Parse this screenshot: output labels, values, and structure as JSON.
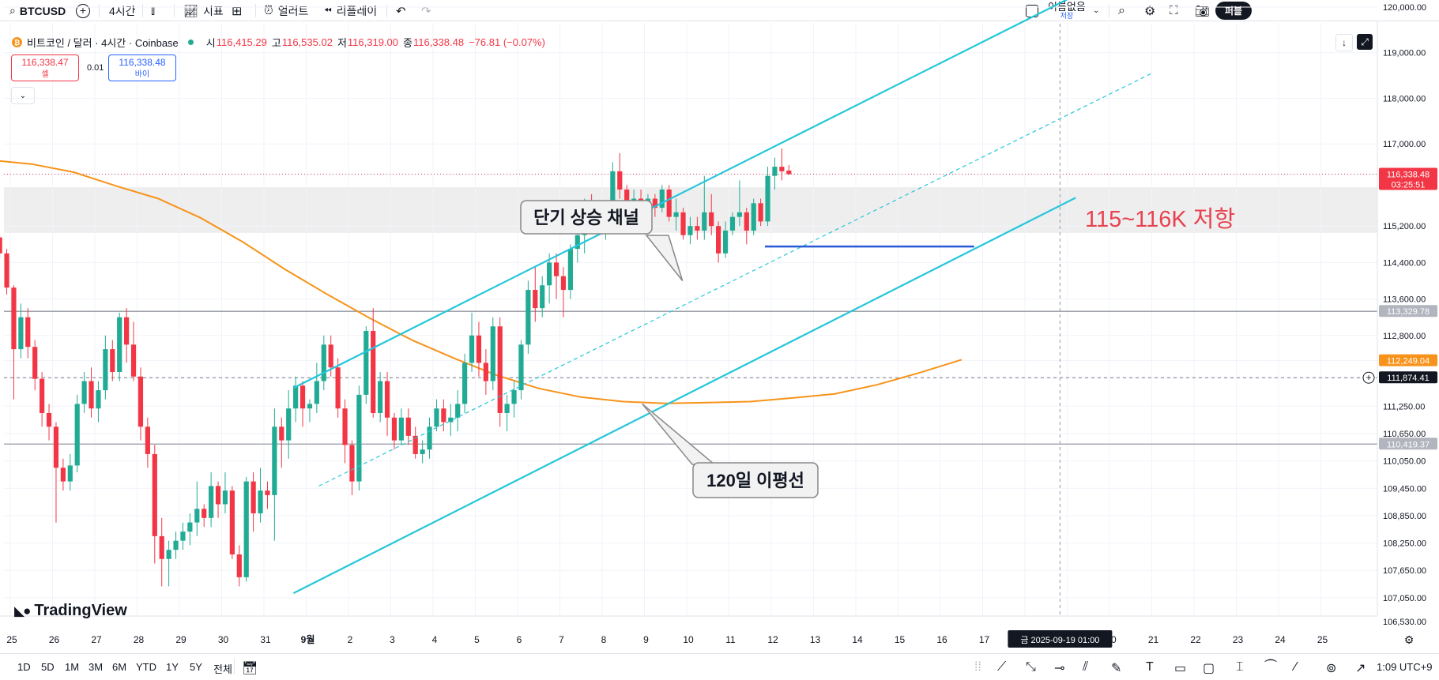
{
  "toolbar": {
    "symbol": "BTCUSD",
    "interval": "4시간",
    "indicators": "지표",
    "alert": "얼러트",
    "replay": "리플레이",
    "layout_name": "이름없음",
    "layout_status": "저장",
    "publish": "퍼블"
  },
  "legend": {
    "title": "비트코인 / 달러 · 4시간 · Coinbase",
    "o_label": "시",
    "o": "116,415.29",
    "h_label": "고",
    "h": "116,535.02",
    "l_label": "저",
    "l": "116,319.00",
    "c_label": "종",
    "c": "116,338.48",
    "change": "−76.81 (−0.07%)"
  },
  "trade": {
    "sell_price": "116,338.47",
    "sell_label": "셀",
    "spread": "0.01",
    "buy_price": "116,338.48",
    "buy_label": "바이"
  },
  "colors": {
    "up": "#22ab94",
    "down": "#f23645",
    "channel": "#26c6da",
    "ma": "#f7931a",
    "support": "#2a5bd7",
    "resistance_zone": "#eeeeee"
  },
  "chart_data": {
    "type": "candlestick",
    "timeframe": "4h",
    "ylim": [
      106300,
      120400
    ],
    "y_ticks": [
      "120,000.00",
      "119,000.00",
      "118,000.00",
      "117,000.00",
      "116,338.48",
      "115,200.00",
      "114,400.00",
      "113,600.00",
      "113,329.78",
      "112,800.00",
      "112,249.04",
      "111,874.41",
      "111,250.00",
      "110,650.00",
      "110,419.37",
      "110,050.00",
      "109,450.00",
      "108,850.00",
      "108,250.00",
      "107,650.00",
      "107,050.00",
      "106,530.00"
    ],
    "y_tick_values": [
      120000,
      119000,
      118000,
      117000,
      116338.48,
      115200,
      114400,
      113600,
      113329.78,
      112800,
      112249.04,
      111874.41,
      111250,
      110650,
      110419.37,
      110050,
      109450,
      108850,
      108250,
      107650,
      107050,
      106530
    ],
    "x_ticks": [
      "25",
      "26",
      "27",
      "28",
      "29",
      "30",
      "31",
      "9월",
      "2",
      "3",
      "4",
      "5",
      "6",
      "7",
      "8",
      "9",
      "10",
      "11",
      "12",
      "13",
      "14",
      "15",
      "16",
      "17",
      "18",
      "19",
      "20",
      "21",
      "22",
      "23",
      "24",
      "25"
    ],
    "x_tick_days": [
      -7,
      -6,
      -5,
      -4,
      -3,
      -2,
      -1,
      0,
      1,
      2,
      3,
      4,
      5,
      6,
      7,
      8,
      9,
      10,
      11,
      12,
      13,
      14,
      15,
      16,
      17,
      18,
      19,
      20,
      21,
      22,
      23,
      24
    ],
    "start_day": -7.5,
    "crosshair_label": "금 2025-09-19  01:00",
    "crosshair_day": 17.83,
    "price_labels": [
      {
        "value": 116338.48,
        "text": "116,338.48",
        "sub": "03:25:51",
        "bg": "#f23645"
      },
      {
        "value": 113329.78,
        "text": "113,329.78",
        "bg": "#b2b5be"
      },
      {
        "value": 112249.04,
        "text": "112,249.04",
        "bg": "#f7931a"
      },
      {
        "value": 111874.41,
        "text": "111,874.41",
        "bg": "#131722"
      },
      {
        "value": 110419.37,
        "text": "110,419.37",
        "bg": "#b2b5be"
      }
    ],
    "horizontal_lines": [
      113329.78,
      110419.37
    ],
    "current_price": 116338.48,
    "crosshair_price": 111874.41,
    "resistance_zone": {
      "from": 115050,
      "to": 116050,
      "label": "115~116K 저항"
    },
    "support_line": {
      "value": 114750,
      "from_day": 10.85,
      "to_day": 15.8
    },
    "channel": {
      "upper": [
        [
          -0.3,
          111650
        ],
        [
          18.5,
          120400
        ]
      ],
      "lower": [
        [
          -0.3,
          107150
        ],
        [
          18.2,
          115820
        ]
      ],
      "mid": [
        [
          0.3,
          109500
        ],
        [
          20.0,
          118550
        ]
      ]
    },
    "ma_label": "120일 이평선",
    "ma_period": "120",
    "ma_points": [
      [
        -7.5,
        116650
      ],
      [
        -6.5,
        116560
      ],
      [
        -5.5,
        116380
      ],
      [
        -4.5,
        116080
      ],
      [
        -3.5,
        115800
      ],
      [
        -2.5,
        115380
      ],
      [
        -1.5,
        114850
      ],
      [
        -0.5,
        114250
      ],
      [
        0.5,
        113700
      ],
      [
        1.5,
        113180
      ],
      [
        2.5,
        112700
      ],
      [
        3.5,
        112300
      ],
      [
        4.5,
        111930
      ],
      [
        5.5,
        111640
      ],
      [
        6.5,
        111450
      ],
      [
        7.5,
        111350
      ],
      [
        8.5,
        111310
      ],
      [
        9.5,
        111330
      ],
      [
        10.5,
        111350
      ],
      [
        11.5,
        111430
      ],
      [
        12.5,
        111520
      ],
      [
        13.5,
        111720
      ],
      [
        14.5,
        111980
      ],
      [
        15.5,
        112270
      ]
    ],
    "annotations": [
      {
        "text": "단기 상승 채널",
        "target_day": 8.9,
        "target_price": 114000
      },
      {
        "text": "120일 이평선",
        "target_day": 7.95,
        "target_price": 111300
      }
    ],
    "candles_note": "OHLC approximated from chart, 6 candles per day",
    "candles": [
      [
        115120,
        115300,
        114800,
        114950
      ],
      [
        114950,
        115000,
        114500,
        114600
      ],
      [
        114600,
        114700,
        113700,
        113850
      ],
      [
        113850,
        113900,
        111400,
        112500
      ],
      [
        112500,
        113500,
        112300,
        113200
      ],
      [
        113200,
        113400,
        112300,
        112550
      ],
      [
        112550,
        112700,
        111600,
        111850
      ],
      [
        111850,
        112000,
        110800,
        111100
      ],
      [
        111100,
        111300,
        110500,
        110800
      ],
      [
        110800,
        110900,
        108700,
        109900
      ],
      [
        109900,
        110100,
        109400,
        109600
      ],
      [
        109600,
        110200,
        109400,
        109950
      ],
      [
        109950,
        111500,
        109800,
        111300
      ],
      [
        111300,
        112000,
        111100,
        111800
      ],
      [
        111800,
        112100,
        111000,
        111200
      ],
      [
        111200,
        111800,
        110900,
        111600
      ],
      [
        111600,
        112800,
        111400,
        112500
      ],
      [
        112500,
        112700,
        111800,
        112000
      ],
      [
        112000,
        113300,
        111800,
        113200
      ],
      [
        113200,
        113400,
        112200,
        112600
      ],
      [
        112600,
        113100,
        111800,
        111900
      ],
      [
        111900,
        112100,
        110500,
        110800
      ],
      [
        110800,
        111000,
        109900,
        110200
      ],
      [
        110200,
        110400,
        107800,
        108400
      ],
      [
        108400,
        108800,
        107300,
        107900
      ],
      [
        107900,
        108300,
        107300,
        108100
      ],
      [
        108100,
        108500,
        107900,
        108300
      ],
      [
        108300,
        108700,
        108100,
        108500
      ],
      [
        108500,
        108900,
        108200,
        108700
      ],
      [
        108700,
        109600,
        108400,
        109000
      ],
      [
        109000,
        109100,
        108600,
        108800
      ],
      [
        108800,
        109800,
        108600,
        109500
      ],
      [
        109500,
        109600,
        108800,
        109100
      ],
      [
        109100,
        109800,
        108900,
        109400
      ],
      [
        109400,
        109500,
        107900,
        108000
      ],
      [
        108000,
        108200,
        107300,
        107500
      ],
      [
        107500,
        109700,
        107400,
        109600
      ],
      [
        109600,
        109800,
        108500,
        108900
      ],
      [
        108900,
        109900,
        108700,
        109400
      ],
      [
        109400,
        109600,
        109000,
        109300
      ],
      [
        109300,
        111200,
        108300,
        110800
      ],
      [
        110800,
        111000,
        109900,
        110500
      ],
      [
        110500,
        111600,
        110100,
        111200
      ],
      [
        111200,
        111900,
        110900,
        111700
      ],
      [
        111700,
        111800,
        110800,
        111200
      ],
      [
        111200,
        111400,
        110900,
        111300
      ],
      [
        111300,
        112200,
        111100,
        111800
      ],
      [
        111800,
        112800,
        111600,
        112600
      ],
      [
        112600,
        112800,
        111900,
        112100
      ],
      [
        112100,
        112300,
        111000,
        111200
      ],
      [
        111200,
        111400,
        110000,
        110400
      ],
      [
        110400,
        110500,
        109300,
        109600
      ],
      [
        109600,
        111700,
        109400,
        111500
      ],
      [
        111500,
        113000,
        111300,
        112900
      ],
      [
        112900,
        113400,
        111000,
        111100
      ],
      [
        111100,
        112000,
        110900,
        111800
      ],
      [
        111800,
        112000,
        110600,
        111000
      ],
      [
        111000,
        111100,
        110300,
        110500
      ],
      [
        110500,
        111200,
        110400,
        111000
      ],
      [
        111000,
        111200,
        110400,
        110600
      ],
      [
        110600,
        110800,
        110100,
        110200
      ],
      [
        110200,
        110500,
        110000,
        110300
      ],
      [
        110300,
        111000,
        110100,
        110800
      ],
      [
        110800,
        111400,
        110700,
        111200
      ],
      [
        111200,
        111400,
        110700,
        110900
      ],
      [
        110900,
        111300,
        110600,
        111000
      ],
      [
        111000,
        111600,
        110700,
        111300
      ],
      [
        111300,
        112400,
        111100,
        112200
      ],
      [
        112200,
        113300,
        112000,
        112800
      ],
      [
        112800,
        113100,
        111900,
        112200
      ],
      [
        112200,
        112500,
        111500,
        111800
      ],
      [
        111800,
        113200,
        111600,
        113000
      ],
      [
        113000,
        113200,
        110800,
        111100
      ],
      [
        111100,
        111500,
        110700,
        111300
      ],
      [
        111300,
        111800,
        111000,
        111600
      ],
      [
        111600,
        112700,
        111400,
        112600
      ],
      [
        112600,
        114000,
        112400,
        113800
      ],
      [
        113800,
        114300,
        113100,
        113400
      ],
      [
        113400,
        114100,
        113200,
        113900
      ],
      [
        113900,
        114600,
        113500,
        114400
      ],
      [
        114400,
        114600,
        113600,
        114100
      ],
      [
        114100,
        114300,
        113200,
        113800
      ],
      [
        113800,
        114800,
        113600,
        114700
      ],
      [
        114700,
        115200,
        114400,
        115000
      ],
      [
        115000,
        115800,
        114600,
        115600
      ],
      [
        115600,
        115900,
        115200,
        115400
      ],
      [
        115400,
        115600,
        115000,
        115200
      ],
      [
        115200,
        115500,
        114900,
        115300
      ],
      [
        115300,
        116600,
        115100,
        116400
      ],
      [
        116400,
        116800,
        115800,
        116000
      ],
      [
        116000,
        116100,
        115500,
        115700
      ],
      [
        115700,
        116000,
        115400,
        115800
      ],
      [
        115800,
        116000,
        115300,
        115500
      ],
      [
        115500,
        115900,
        115300,
        115800
      ],
      [
        115800,
        115900,
        115400,
        115600
      ],
      [
        115600,
        116100,
        115500,
        116000
      ],
      [
        116000,
        116100,
        115300,
        115400
      ],
      [
        115400,
        115800,
        115100,
        115500
      ],
      [
        115500,
        115600,
        114900,
        115000
      ],
      [
        115000,
        115400,
        114800,
        115200
      ],
      [
        115200,
        115400,
        114900,
        115100
      ],
      [
        115100,
        116300,
        114900,
        115500
      ],
      [
        115500,
        115900,
        115000,
        115200
      ],
      [
        115200,
        115300,
        114400,
        114600
      ],
      [
        114600,
        115300,
        114500,
        115100
      ],
      [
        115100,
        115500,
        115000,
        115400
      ],
      [
        115400,
        116200,
        115200,
        115500
      ],
      [
        115500,
        115600,
        114800,
        115100
      ],
      [
        115100,
        115800,
        115000,
        115700
      ],
      [
        115700,
        115800,
        115200,
        115300
      ],
      [
        115300,
        116500,
        115200,
        116300
      ],
      [
        116300,
        116700,
        116000,
        116500
      ],
      [
        116500,
        116900,
        116200,
        116400
      ],
      [
        116415.29,
        116535.02,
        116319,
        116338.48
      ]
    ]
  },
  "bottom": {
    "ranges": [
      "1D",
      "5D",
      "1M",
      "3M",
      "6M",
      "YTD",
      "1Y",
      "5Y",
      "전체"
    ],
    "timezone": "1:09 UTC+9"
  },
  "logo": "TradingView"
}
